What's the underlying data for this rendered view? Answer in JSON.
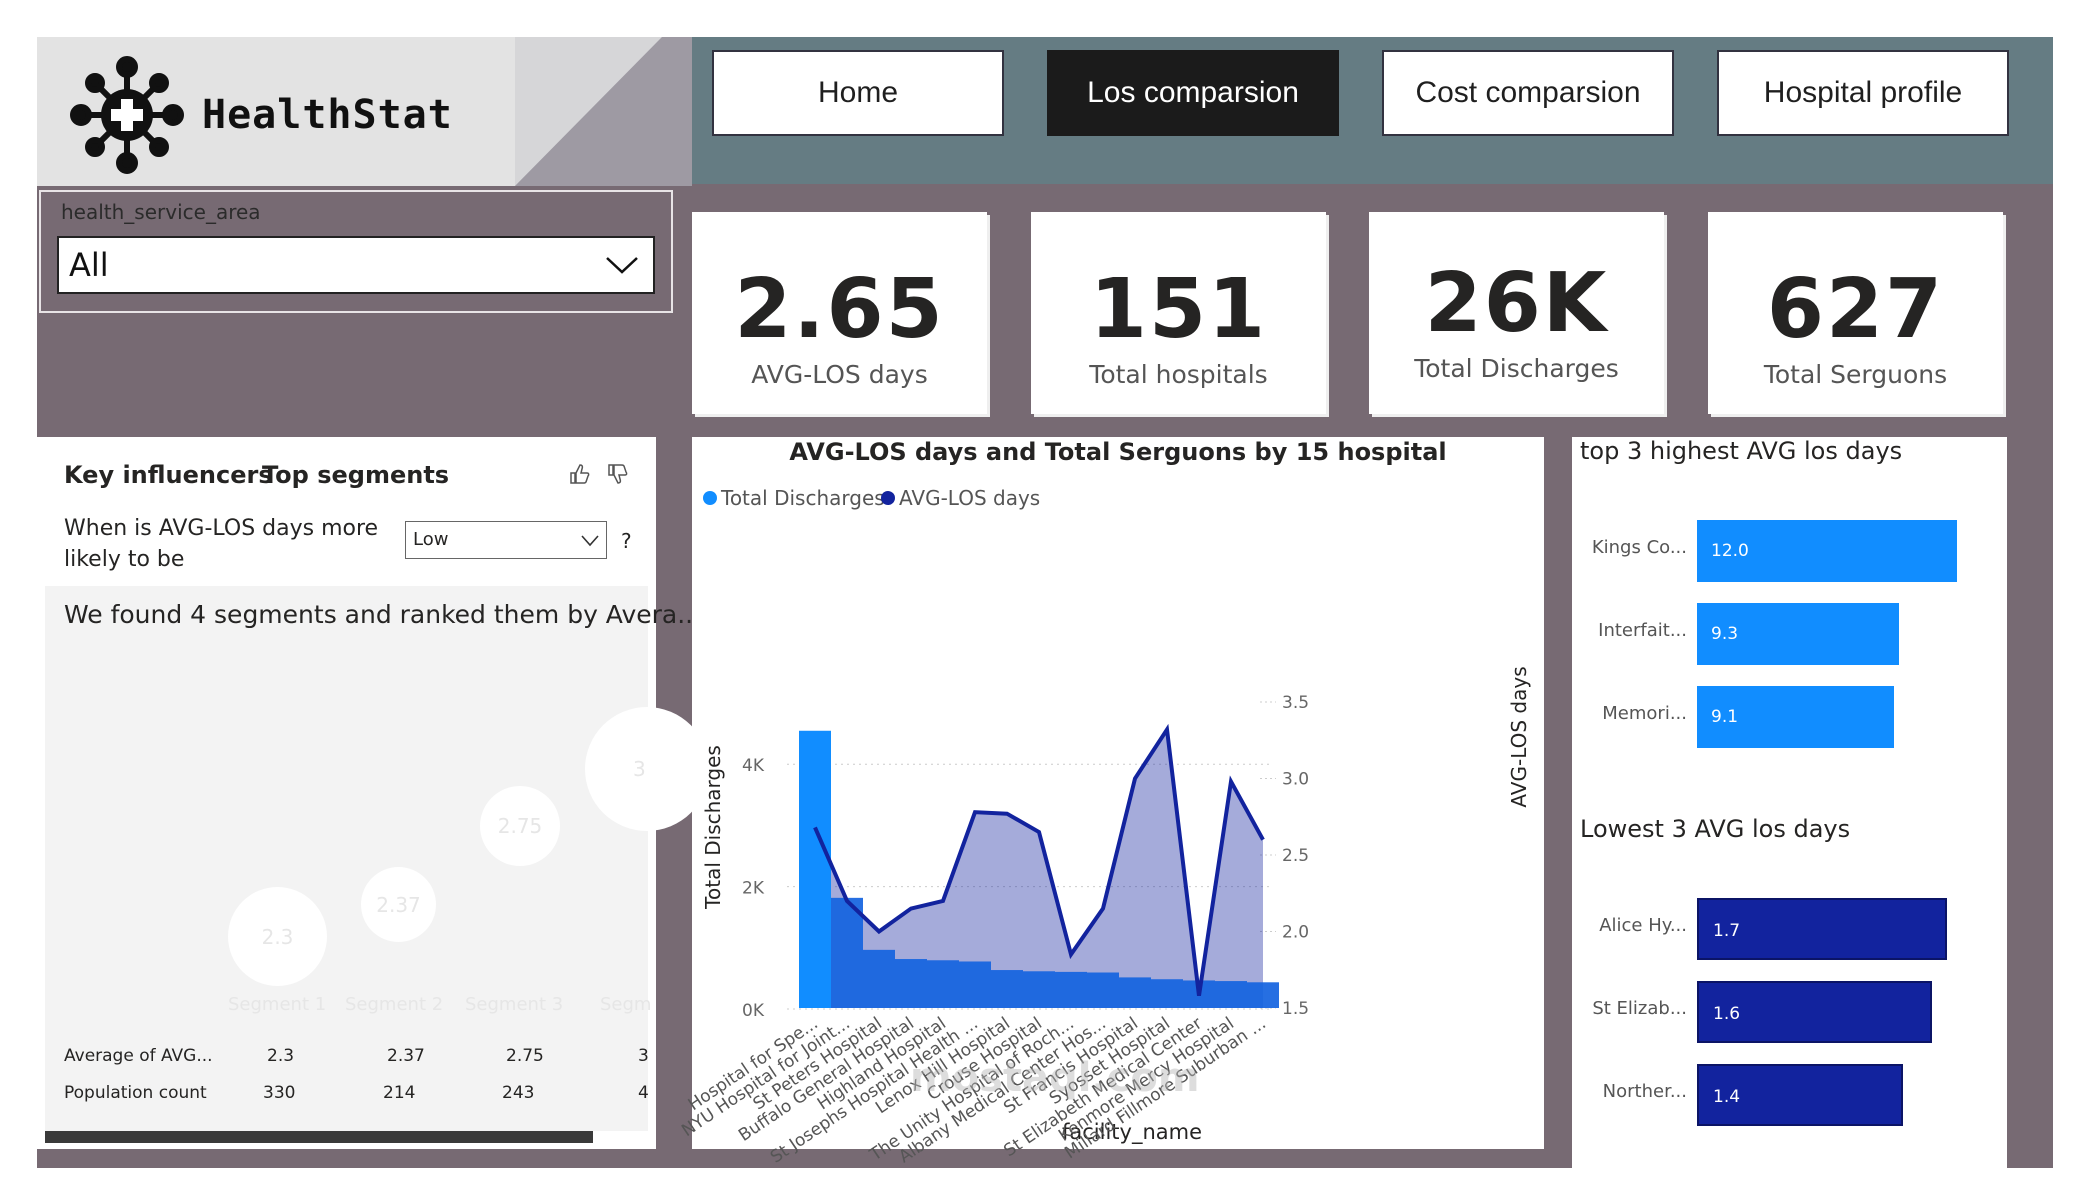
{
  "brand": {
    "name": "HealthStat"
  },
  "nav": {
    "items": [
      {
        "label": "Home",
        "active": false
      },
      {
        "label": "Los comparsion",
        "active": true
      },
      {
        "label": "Cost comparsion",
        "active": false
      },
      {
        "label": "Hospital profile",
        "active": false
      }
    ]
  },
  "slicer": {
    "title": "health_service_area",
    "value": "All"
  },
  "kpis": [
    {
      "value": "2.65",
      "label": "AVG-LOS days"
    },
    {
      "value": "151",
      "label": "Total hospitals"
    },
    {
      "value": "26K",
      "label": "Total Discharges"
    },
    {
      "value": "627",
      "label": "Total Serguons"
    }
  ],
  "key_influencers": {
    "tab_key": "Key influencers",
    "tab_top": "Top segments",
    "question_line1": "When is AVG-LOS days more",
    "question_line2": "likely to be",
    "dropdown_value": "Low",
    "help": "?",
    "found_text": "We found 4 segments and ranked them by Avera...",
    "segments": [
      {
        "name": "Segment 1",
        "value": "2.3",
        "population": "330"
      },
      {
        "name": "Segment 2",
        "value": "2.37",
        "population": "214"
      },
      {
        "name": "Segment 3",
        "value": "2.75",
        "population": "243"
      },
      {
        "name": "Segm",
        "value": "3",
        "population": "4"
      }
    ],
    "row_avg_label": "Average of AVG...",
    "row_pop_label": "Population count"
  },
  "combo": {
    "title": "AVG-LOS days and Total Serguons by 15 hospital",
    "legend_discharges": "Total Discharges",
    "legend_los": "AVG-LOS days",
    "xlabel": "facility_name",
    "ylabel_left": "Total Discharges",
    "ylabel_right": "AVG-LOS days",
    "colors": {
      "discharges": "#118dff",
      "los": "#12239e"
    }
  },
  "chart_data": [
    {
      "type": "bar",
      "title": "AVG-LOS days and Total Serguons by 15 hospital",
      "xlabel": "facility_name",
      "ylabel": "Total Discharges",
      "ylabel_right": "AVG-LOS days",
      "ylim": [
        0,
        5000
      ],
      "ylim_right": [
        1.5,
        3.5
      ],
      "yticks_left": [
        "0K",
        "2K",
        "4K"
      ],
      "yticks_right": [
        "1.5",
        "2.0",
        "2.5",
        "3.0",
        "3.5"
      ],
      "categories": [
        "Hospital for Spe...",
        "NYU Hospital for Joint...",
        "St Peters Hospital",
        "Buffalo General Hospital",
        "Highland Hospital",
        "St Josephs Hospital Health ...",
        "Lenox Hill Hospital",
        "Crouse Hospital",
        "The Unity Hospital of Roch...",
        "Albany Medical Center Hos...",
        "St Francis Hospital",
        "Syosset Hospital",
        "St Elizabeth Medical Center",
        "Kenmore Mercy Hospital",
        "Millard Fillmore Suburban ..."
      ],
      "series": [
        {
          "name": "Total Discharges",
          "values": [
            4530,
            1800,
            950,
            800,
            780,
            760,
            620,
            600,
            590,
            580,
            500,
            470,
            450,
            440,
            420
          ]
        },
        {
          "name": "AVG-LOS days",
          "values": [
            2.68,
            2.2,
            2.0,
            2.15,
            2.2,
            2.78,
            2.77,
            2.65,
            1.85,
            2.15,
            3.0,
            3.32,
            1.58,
            2.98,
            2.6
          ]
        }
      ]
    },
    {
      "type": "bar",
      "title": "top 3 highest AVG los days",
      "categories": [
        "Kings Co...",
        "Interfait...",
        "Memori..."
      ],
      "values": [
        12.0,
        9.3,
        9.1
      ]
    },
    {
      "type": "bar",
      "title": "Lowest 3 AVG los days",
      "categories": [
        "Alice Hy...",
        "St Elizab...",
        "Norther..."
      ],
      "values": [
        1.7,
        1.6,
        1.4
      ]
    }
  ],
  "top3": {
    "title": "top 3 highest AVG los days",
    "color": "#118dff",
    "items": [
      {
        "label": "Kings Co...",
        "value": "12.0"
      },
      {
        "label": "Interfait...",
        "value": "9.3"
      },
      {
        "label": "Memori...",
        "value": "9.1"
      }
    ]
  },
  "low3": {
    "title": "Lowest 3 AVG los days",
    "color": "#12239e",
    "items": [
      {
        "label": "Alice Hy...",
        "value": "1.7"
      },
      {
        "label": "St Elizab...",
        "value": "1.6"
      },
      {
        "label": "Norther...",
        "value": "1.4"
      }
    ]
  },
  "watermark": "mostaql.com"
}
